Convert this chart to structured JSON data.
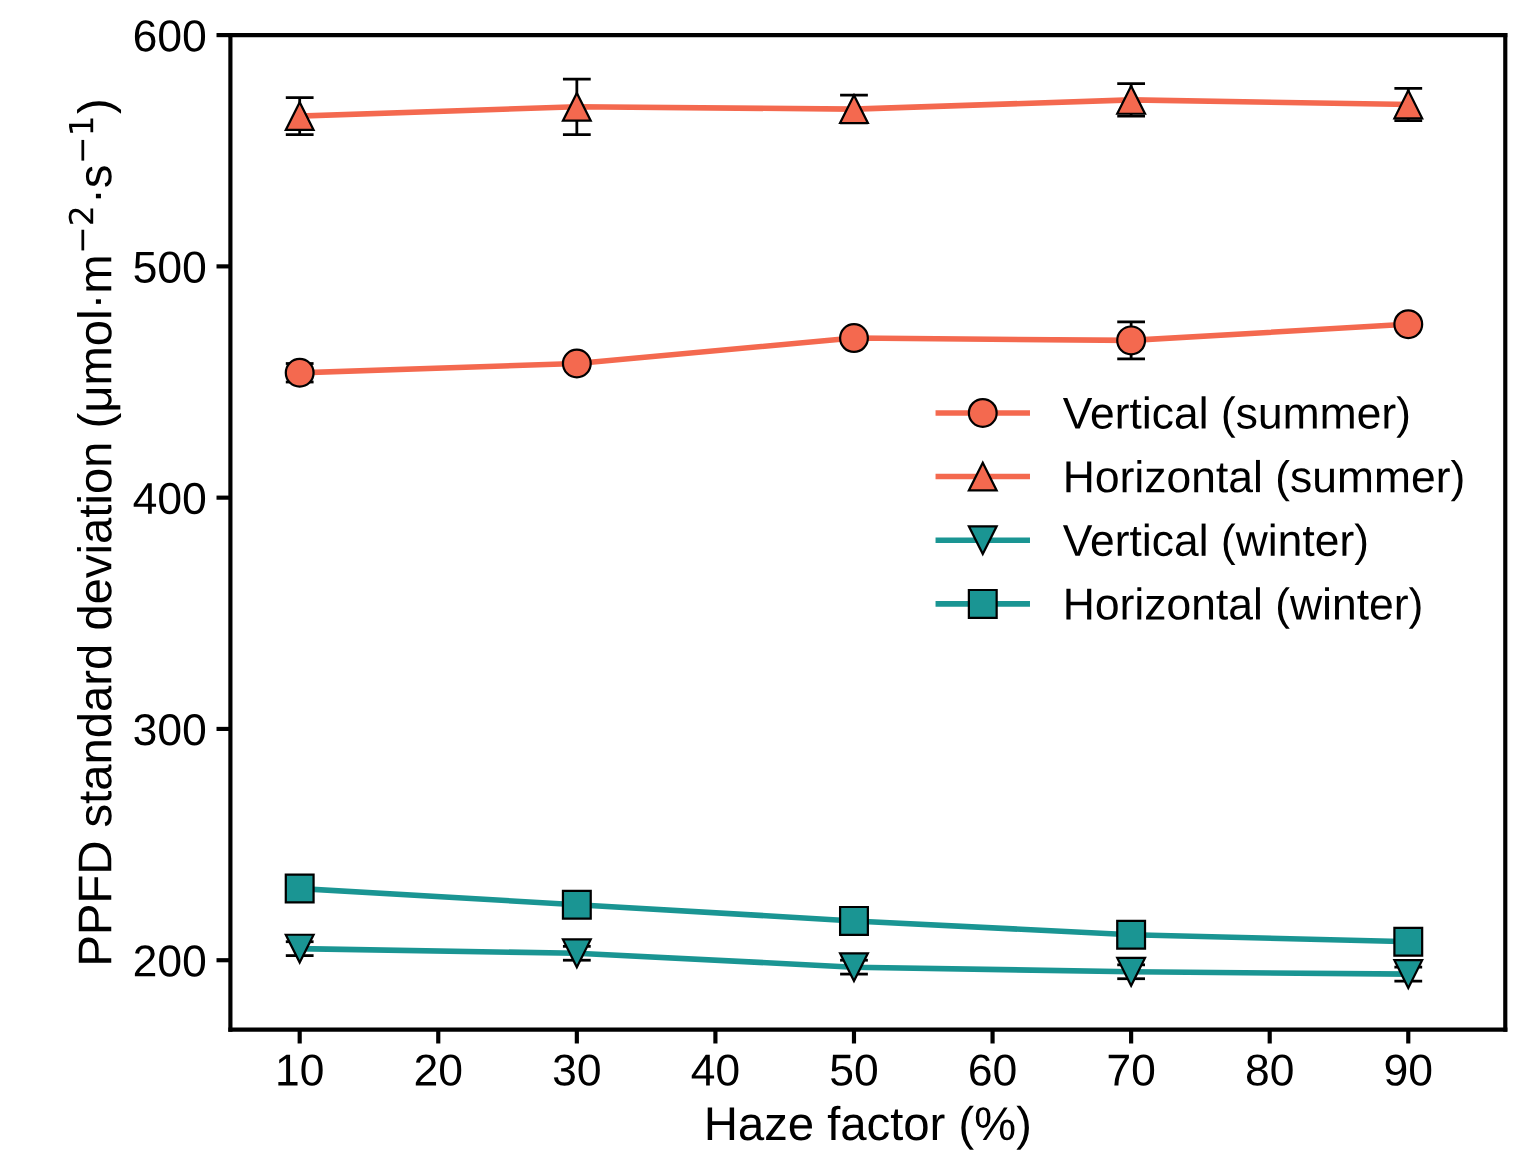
{
  "chart_data": {
    "type": "line",
    "xlabel": "Haze factor (%)",
    "ylabel": "PPFD standard deviation (μmol·m$^{−2}$·s$^{−1}$)",
    "x": [
      10,
      30,
      50,
      70,
      90
    ],
    "xlim": [
      5,
      97
    ],
    "xticks": [
      10,
      20,
      30,
      40,
      50,
      60,
      70,
      80,
      90
    ],
    "ylim": [
      170,
      600
    ],
    "yticks": [
      200,
      300,
      400,
      500,
      600
    ],
    "grid": false,
    "legend": "right",
    "line_style": "solid",
    "series": [
      {
        "name": "Vertical (summer)",
        "color": "#f4694f",
        "marker": "circle",
        "values": [
          454,
          458,
          469,
          468,
          475
        ],
        "errors": [
          4,
          null,
          null,
          8,
          null
        ]
      },
      {
        "name": "Horizontal (summer)",
        "color": "#f4694f",
        "marker": "triangle",
        "values": [
          565,
          569,
          568,
          572,
          570
        ],
        "errors": [
          8,
          12,
          6,
          7,
          7
        ]
      },
      {
        "name": "Vertical (winter)",
        "color": "#1a9593",
        "marker": "triangle_down",
        "values": [
          205,
          203,
          197,
          195,
          194
        ],
        "errors": [
          3,
          3,
          3,
          3,
          3
        ]
      },
      {
        "name": "Horizontal (winter)",
        "color": "#1a9593",
        "marker": "square",
        "values": [
          231,
          224,
          217,
          211,
          208
        ]
      }
    ]
  }
}
